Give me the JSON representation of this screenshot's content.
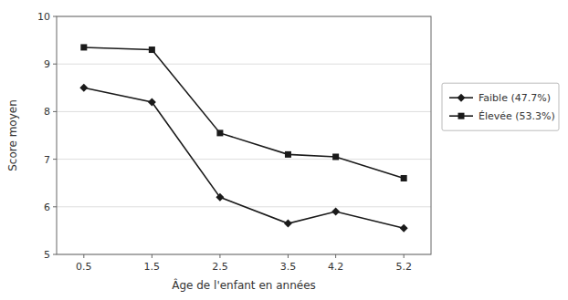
{
  "chart_data": {
    "type": "line",
    "xlabel": "Âge de l'enfant en années",
    "ylabel": "Score moyen",
    "x": [
      0.5,
      1.5,
      2.5,
      3.5,
      4.2,
      5.2
    ],
    "series": [
      {
        "name": "Faible (47.7%)",
        "color": "#1a1a1a",
        "marker": "diamond",
        "values": [
          8.5,
          8.2,
          6.2,
          5.65,
          5.9,
          5.55
        ]
      },
      {
        "name": "Élevée (53.3%)",
        "color": "#1a1a1a",
        "marker": "square",
        "values": [
          9.35,
          9.3,
          7.55,
          7.1,
          7.05,
          6.6
        ]
      }
    ],
    "xlim": [
      0.1,
      5.6
    ],
    "xticks": [
      0.5,
      1.5,
      2.5,
      3.5,
      4.2,
      5.2
    ],
    "ylim": [
      5,
      10
    ],
    "yticks": [
      5,
      6,
      7,
      8,
      9,
      10
    ],
    "grid": true,
    "legend": "right"
  }
}
